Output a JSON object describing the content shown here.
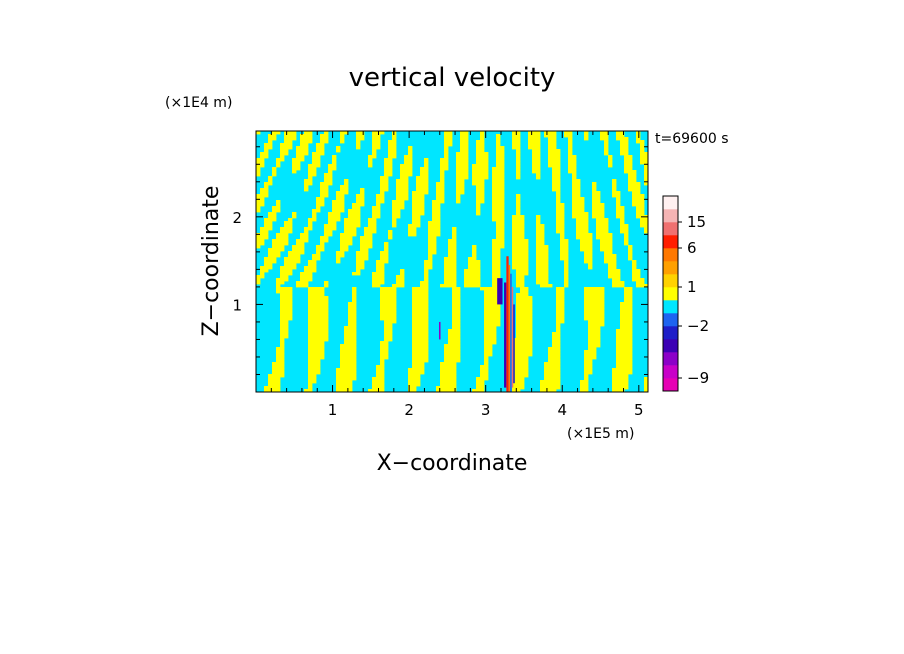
{
  "chart_data": {
    "type": "heatmap",
    "title": "vertical velocity",
    "xlabel": "X−coordinate",
    "ylabel": "Z−coordinate",
    "x_unit": "(×1E5 m)",
    "y_unit": "(×1E4 m)",
    "time_label": "t=69600 s",
    "xlim": [
      0,
      5.12
    ],
    "ylim": [
      0,
      2.98
    ],
    "x_ticks": [
      1,
      2,
      3,
      4,
      5
    ],
    "y_ticks": [
      1,
      2
    ],
    "x_tick_labels": [
      "1",
      "2",
      "3",
      "4",
      "5"
    ],
    "y_tick_labels": [
      "1",
      "2"
    ],
    "colorbar": {
      "levels": [
        {
          "lower": -12,
          "upper": -9,
          "color": "#e600b4"
        },
        {
          "lower": -9,
          "upper": -6,
          "color": "#c800c8"
        },
        {
          "lower": -6,
          "upper": -4,
          "color": "#8c00c8"
        },
        {
          "lower": -4,
          "upper": -3,
          "color": "#3c00b4"
        },
        {
          "lower": -3,
          "upper": -2,
          "color": "#1e1ec8"
        },
        {
          "lower": -2,
          "upper": -1,
          "color": "#1e64f0"
        },
        {
          "lower": -1,
          "upper": 0,
          "color": "#00e6ff"
        },
        {
          "lower": 0,
          "upper": 1,
          "color": "#ffff00"
        },
        {
          "lower": 1,
          "upper": 2,
          "color": "#ffd200"
        },
        {
          "lower": 2,
          "upper": 3,
          "color": "#ffa000"
        },
        {
          "lower": 3,
          "upper": 6,
          "color": "#ff7800"
        },
        {
          "lower": 6,
          "upper": 10,
          "color": "#ff1e00"
        },
        {
          "lower": 10,
          "upper": 15,
          "color": "#f07070"
        },
        {
          "lower": 15,
          "upper": 20,
          "color": "#f5b4b4"
        },
        {
          "lower": 20,
          "upper": 25,
          "color": "#fff0f0"
        }
      ],
      "tick_labels": [
        {
          "label": "15",
          "value": 15
        },
        {
          "label": "6",
          "value": 6
        },
        {
          "label": "1",
          "value": 1
        },
        {
          "label": "−2",
          "value": -2
        },
        {
          "label": "−9",
          "value": -9
        }
      ]
    },
    "field_colors": {
      "background": "#00e6ff",
      "updraft": "#ffff00"
    }
  }
}
